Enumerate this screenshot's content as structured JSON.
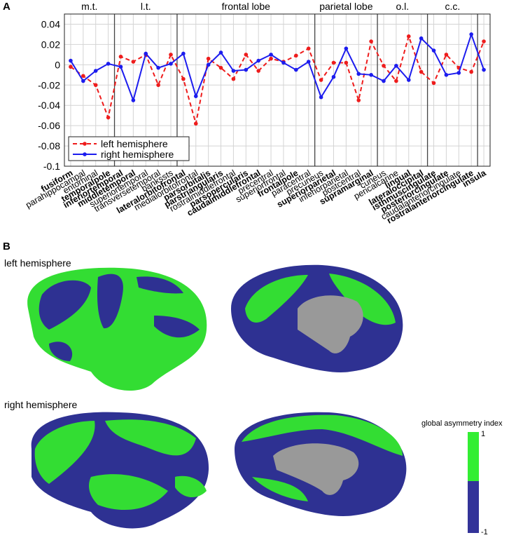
{
  "panel_a": "A",
  "panel_b": "B",
  "chart_data": {
    "type": "line",
    "categories": [
      "fusiform",
      "parahippocampal",
      "entorhinal",
      "temporalpole",
      "inferiortemporal",
      "middletemporal",
      "superiortemporal",
      "transversetemporal",
      "bankssts",
      "lateralorbitofrontal",
      "medialorbitofrontal",
      "parsorbitalis",
      "parstriangularis",
      "rostralmiddlefrontal",
      "parsopercularis",
      "caudalmiddlefrontal",
      "precentral",
      "superiorfrontal",
      "frontalpole",
      "paracentral",
      "precuneus",
      "superiorparietal",
      "inferiorparietal",
      "postcentral",
      "supramarginal",
      "cuneus",
      "pericalcarine",
      "lingual",
      "lateraloccipital",
      "isthmuscingulate",
      "posteriorcingulate",
      "caudalanteriorcingulate",
      "rostralanteriorcingulate",
      "insula"
    ],
    "label_bold": [
      true,
      false,
      false,
      true,
      true,
      true,
      false,
      false,
      false,
      true,
      false,
      true,
      true,
      false,
      true,
      true,
      false,
      false,
      true,
      false,
      false,
      true,
      false,
      false,
      true,
      false,
      false,
      true,
      true,
      true,
      true,
      false,
      true,
      true
    ],
    "groups": [
      {
        "label": "m.t.",
        "first": 0,
        "last": 3
      },
      {
        "label": "l.t.",
        "first": 4,
        "last": 8
      },
      {
        "label": "frontal lobe",
        "first": 9,
        "last": 19
      },
      {
        "label": "parietal lobe",
        "first": 20,
        "last": 24
      },
      {
        "label": "o.l.",
        "first": 25,
        "last": 28
      },
      {
        "label": "c.c.",
        "first": 29,
        "last": 32
      }
    ],
    "series": [
      {
        "name": "left hemisphere",
        "color": "#ee1c1c",
        "dashed": true,
        "values": [
          -0.002,
          -0.011,
          -0.02,
          -0.052,
          0.008,
          0.003,
          0.01,
          -0.02,
          0.01,
          -0.014,
          -0.058,
          0.006,
          -0.003,
          -0.014,
          0.01,
          -0.006,
          0.006,
          0.003,
          0.009,
          0.016,
          -0.015,
          0.002,
          0.002,
          -0.035,
          0.023,
          -0.001,
          -0.016,
          0.028,
          -0.007,
          -0.018,
          0.01,
          -0.003,
          -0.007,
          0.023
        ]
      },
      {
        "name": "right hemisphere",
        "color": "#1c1cee",
        "dashed": false,
        "values": [
          0.004,
          -0.016,
          -0.006,
          0.001,
          -0.002,
          -0.035,
          0.011,
          -0.003,
          0.001,
          0.011,
          -0.031,
          0,
          0.012,
          -0.006,
          -0.005,
          0.004,
          0.01,
          0.002,
          -0.005,
          0.003,
          -0.032,
          -0.012,
          0.016,
          -0.009,
          -0.01,
          -0.016,
          -0.001,
          -0.015,
          0.026,
          0.014,
          -0.01,
          -0.008,
          0.03,
          -0.005
        ]
      }
    ],
    "ylim": [
      -0.1,
      0.05
    ],
    "yticks": [
      0.04,
      0.02,
      0,
      -0.02,
      -0.04,
      -0.06,
      -0.08,
      -0.1
    ],
    "grid": true,
    "legend": "lower left"
  },
  "brain": {
    "left_label": "left hemisphere",
    "right_label": "right hemisphere",
    "colorbar": {
      "title": "global asymmetry index",
      "max": "1",
      "min": "-1"
    }
  }
}
